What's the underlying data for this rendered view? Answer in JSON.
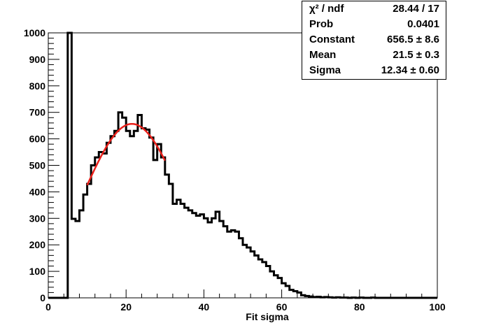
{
  "stats": {
    "rows": [
      {
        "label": "χ² / ndf",
        "value": "28.44 / 17"
      },
      {
        "label": "Prob",
        "value": "0.0401"
      },
      {
        "label": "Constant",
        "value": "656.5 ± 8.6"
      },
      {
        "label": "Mean",
        "value": "21.5 ± 0.3"
      },
      {
        "label": "Sigma",
        "value": "12.34 ± 0.60"
      }
    ]
  },
  "chart_data": {
    "type": "histogram",
    "xlabel": "Fit sigma",
    "ylabel": "",
    "xlim": [
      0,
      100
    ],
    "ylim": [
      0,
      1000
    ],
    "x_ticks": [
      0,
      20,
      40,
      60,
      80,
      100
    ],
    "y_ticks": [
      0,
      100,
      200,
      300,
      400,
      500,
      600,
      700,
      800,
      900,
      1000
    ],
    "bin_width": 1,
    "bins": [
      [
        0,
        0
      ],
      [
        1,
        0
      ],
      [
        2,
        0
      ],
      [
        3,
        0
      ],
      [
        4,
        0
      ],
      [
        5,
        1000
      ],
      [
        6,
        298
      ],
      [
        7,
        290
      ],
      [
        8,
        330
      ],
      [
        9,
        390
      ],
      [
        10,
        430
      ],
      [
        11,
        500
      ],
      [
        12,
        530
      ],
      [
        13,
        550
      ],
      [
        14,
        545
      ],
      [
        15,
        585
      ],
      [
        16,
        610
      ],
      [
        17,
        630
      ],
      [
        18,
        700
      ],
      [
        19,
        680
      ],
      [
        20,
        630
      ],
      [
        21,
        610
      ],
      [
        22,
        630
      ],
      [
        23,
        690
      ],
      [
        24,
        640
      ],
      [
        25,
        635
      ],
      [
        26,
        605
      ],
      [
        27,
        520
      ],
      [
        28,
        580
      ],
      [
        29,
        530
      ],
      [
        30,
        465
      ],
      [
        31,
        430
      ],
      [
        32,
        355
      ],
      [
        33,
        370
      ],
      [
        34,
        355
      ],
      [
        35,
        340
      ],
      [
        36,
        330
      ],
      [
        37,
        320
      ],
      [
        38,
        310
      ],
      [
        39,
        315
      ],
      [
        40,
        300
      ],
      [
        41,
        285
      ],
      [
        42,
        300
      ],
      [
        43,
        325
      ],
      [
        44,
        290
      ],
      [
        45,
        270
      ],
      [
        46,
        250
      ],
      [
        47,
        255
      ],
      [
        48,
        250
      ],
      [
        49,
        225
      ],
      [
        50,
        200
      ],
      [
        51,
        190
      ],
      [
        52,
        175
      ],
      [
        53,
        160
      ],
      [
        54,
        145
      ],
      [
        55,
        135
      ],
      [
        56,
        120
      ],
      [
        57,
        100
      ],
      [
        58,
        85
      ],
      [
        59,
        75
      ],
      [
        60,
        55
      ],
      [
        61,
        45
      ],
      [
        62,
        30
      ],
      [
        63,
        25
      ],
      [
        64,
        20
      ],
      [
        65,
        10
      ],
      [
        66,
        7
      ],
      [
        67,
        5
      ],
      [
        68,
        3
      ],
      [
        69,
        4
      ],
      [
        70,
        2
      ],
      [
        71,
        3
      ],
      [
        72,
        2
      ],
      [
        73,
        1
      ],
      [
        74,
        2
      ],
      [
        75,
        1
      ],
      [
        76,
        1
      ],
      [
        77,
        0
      ],
      [
        78,
        1
      ],
      [
        79,
        0
      ],
      [
        80,
        1
      ],
      [
        81,
        0
      ],
      [
        82,
        0
      ],
      [
        83,
        1
      ],
      [
        84,
        0
      ],
      [
        85,
        0
      ],
      [
        86,
        0
      ],
      [
        87,
        0
      ],
      [
        88,
        0
      ],
      [
        89,
        0
      ],
      [
        90,
        0
      ],
      [
        91,
        0
      ],
      [
        92,
        0
      ],
      [
        93,
        0
      ],
      [
        94,
        0
      ],
      [
        95,
        0
      ],
      [
        96,
        0
      ],
      [
        97,
        0
      ],
      [
        98,
        0
      ],
      [
        99,
        0
      ]
    ],
    "fit": {
      "function": "gaus",
      "constant": 656.5,
      "mean": 21.5,
      "sigma": 12.34,
      "range": [
        10,
        30
      ],
      "color": "#e8201a"
    },
    "line_color": "#000000"
  }
}
